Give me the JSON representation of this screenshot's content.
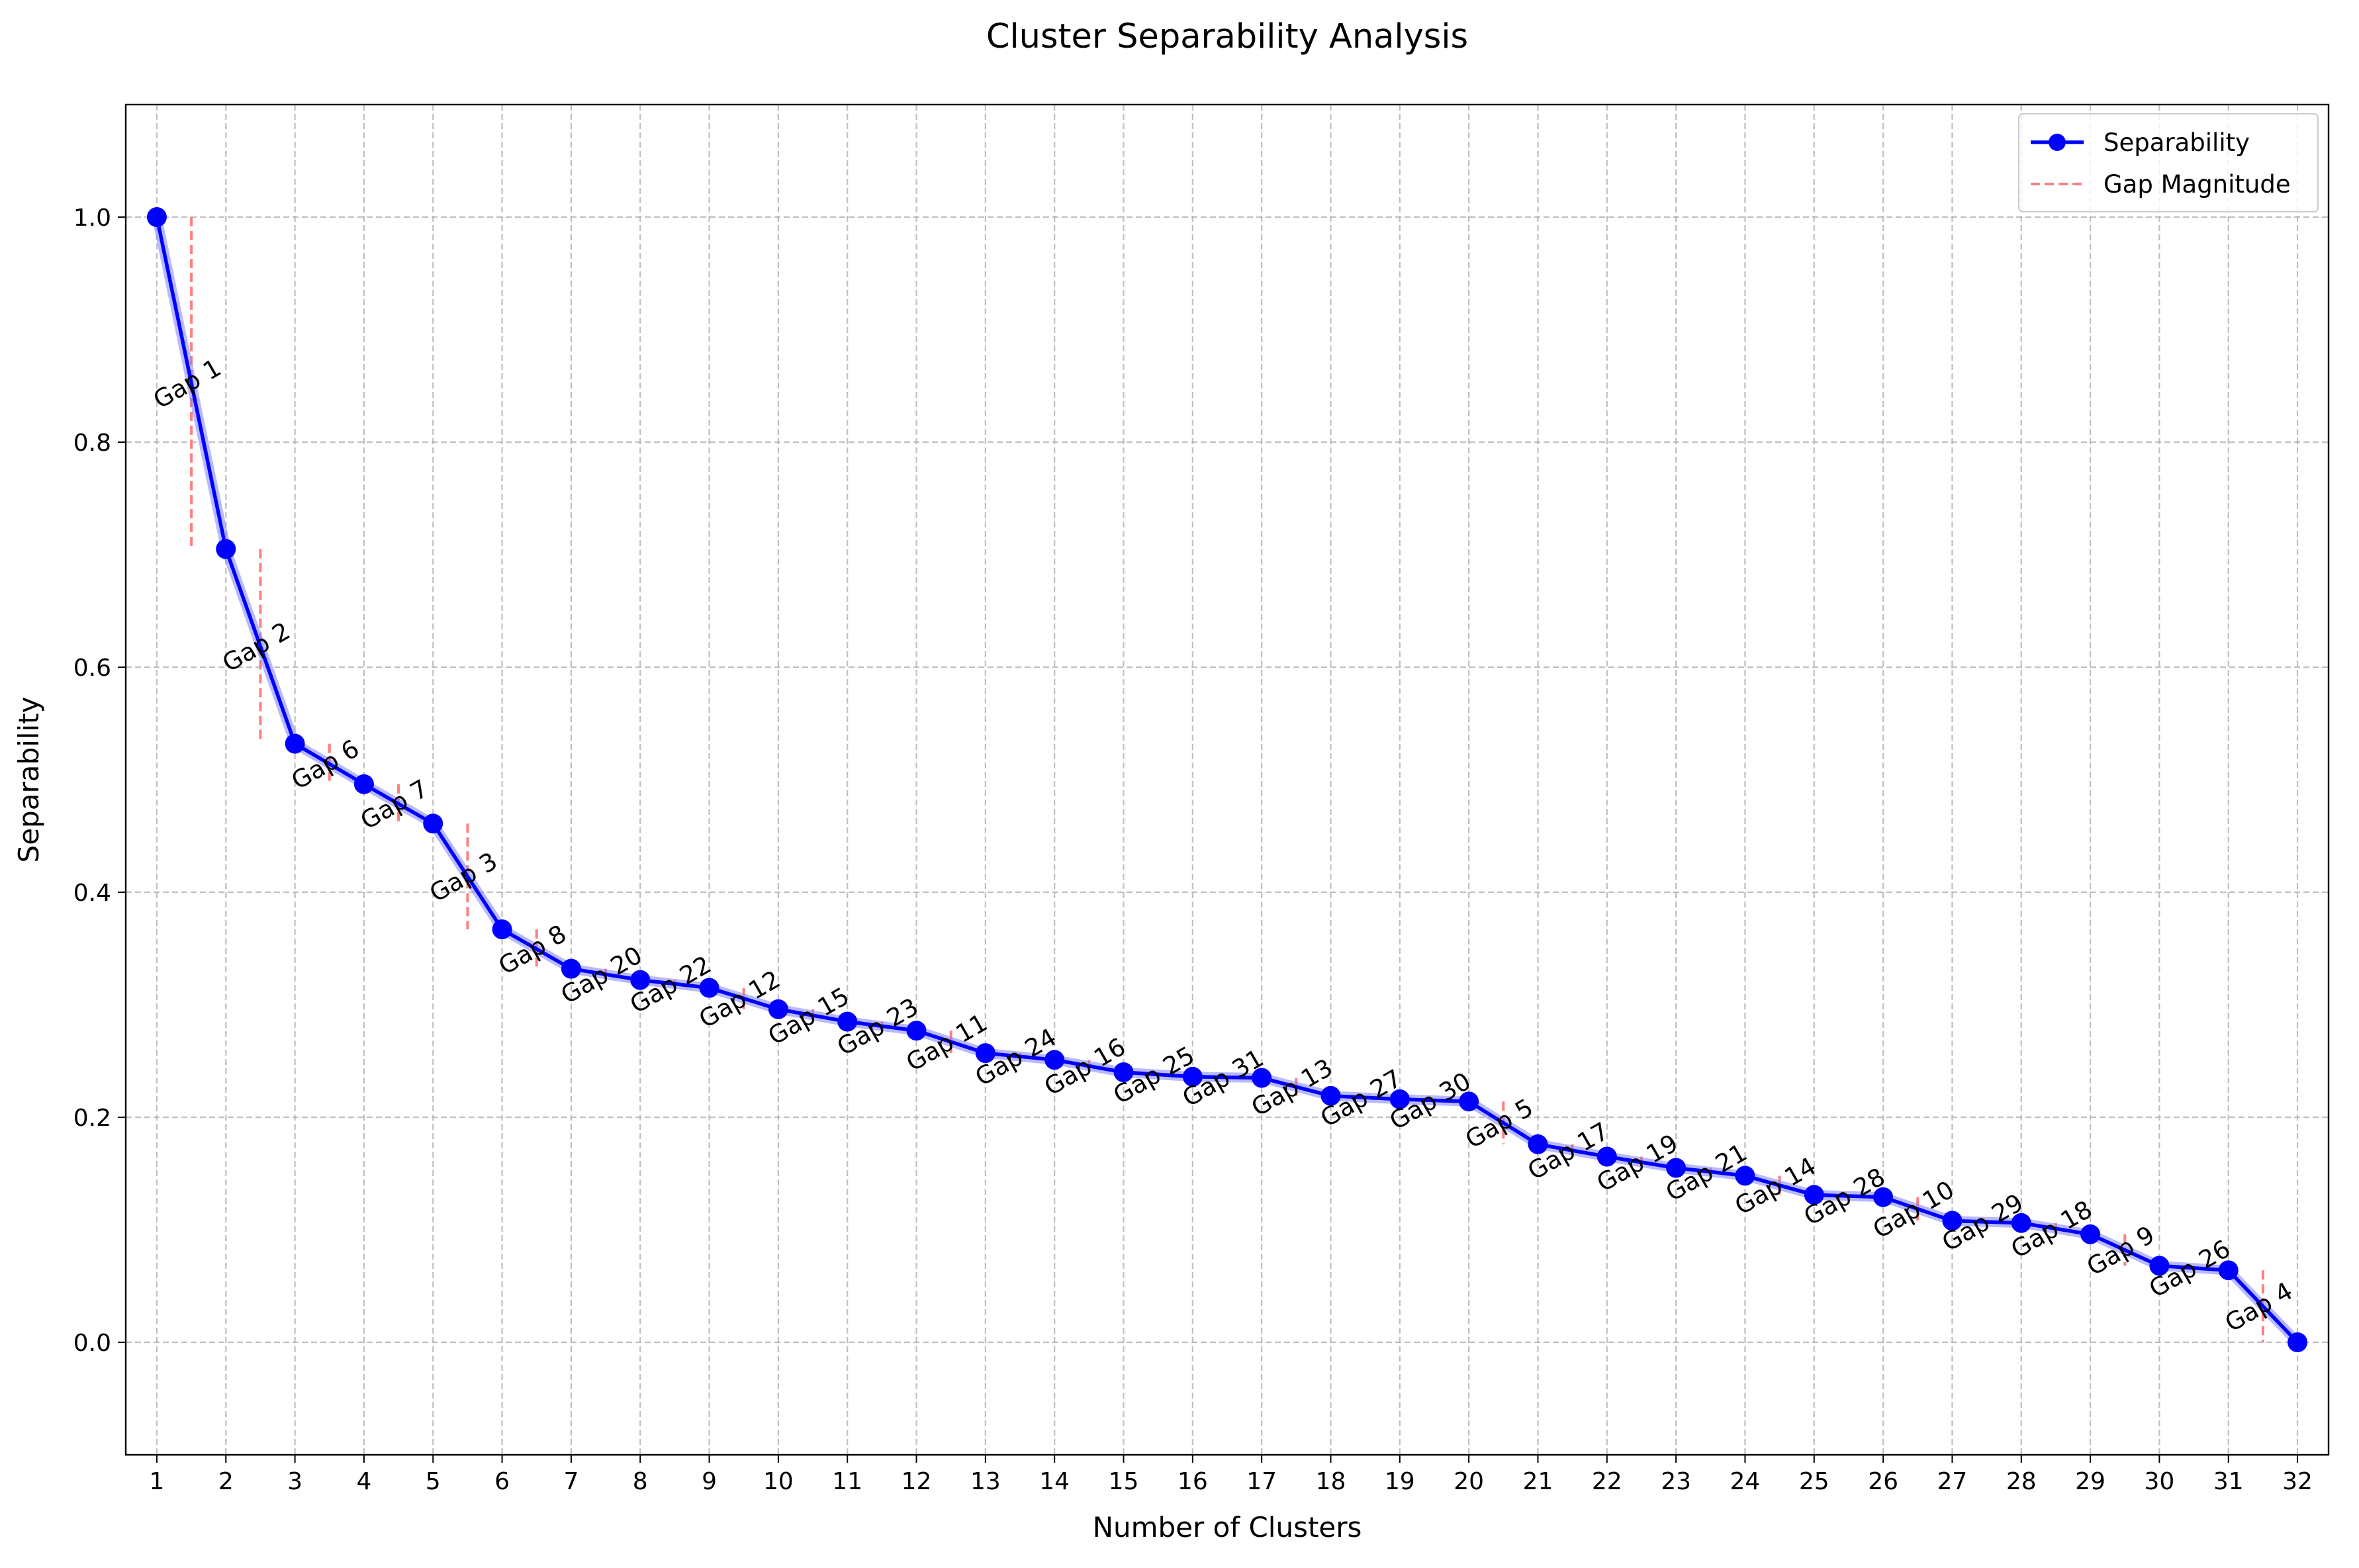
{
  "chart_data": {
    "type": "line",
    "title": "Cluster Separability Analysis",
    "xlabel": "Number of Clusters",
    "ylabel": "Separability",
    "xlim": [
      0.55,
      32.45
    ],
    "ylim": [
      -0.1,
      1.1
    ],
    "x_ticks": [
      1,
      2,
      3,
      4,
      5,
      6,
      7,
      8,
      9,
      10,
      11,
      12,
      13,
      14,
      15,
      16,
      17,
      18,
      19,
      20,
      21,
      22,
      23,
      24,
      25,
      26,
      27,
      28,
      29,
      30,
      31,
      32
    ],
    "y_ticks": [
      0.0,
      0.2,
      0.4,
      0.6,
      0.8,
      1.0
    ],
    "y_tick_labels": [
      "0.0",
      "0.2",
      "0.4",
      "0.6",
      "0.8",
      "1.0"
    ],
    "grid": true,
    "legend_position": "top-right",
    "series": [
      {
        "name": "Separability",
        "color": "#0000ff",
        "marker": "circle",
        "x": [
          1,
          2,
          3,
          4,
          5,
          6,
          7,
          8,
          9,
          10,
          11,
          12,
          13,
          14,
          15,
          16,
          17,
          18,
          19,
          20,
          21,
          22,
          23,
          24,
          25,
          26,
          27,
          28,
          29,
          30,
          31,
          32
        ],
        "values": [
          1.0,
          0.705,
          0.532,
          0.496,
          0.461,
          0.367,
          0.332,
          0.322,
          0.315,
          0.296,
          0.285,
          0.277,
          0.257,
          0.251,
          0.24,
          0.236,
          0.235,
          0.219,
          0.216,
          0.214,
          0.176,
          0.165,
          0.155,
          0.148,
          0.131,
          0.129,
          0.108,
          0.106,
          0.096,
          0.068,
          0.064,
          0.0
        ]
      }
    ],
    "gap_series": {
      "name": "Gap Magnitude",
      "color": "#ff7f7f",
      "style": "dashed"
    },
    "gap_labels": [
      "Gap 1",
      "Gap 2",
      "Gap 6",
      "Gap 7",
      "Gap 3",
      "Gap 8",
      "Gap 20",
      "Gap 22",
      "Gap 12",
      "Gap 15",
      "Gap 23",
      "Gap 11",
      "Gap 24",
      "Gap 16",
      "Gap 25",
      "Gap 31",
      "Gap 13",
      "Gap 27",
      "Gap 30",
      "Gap 5",
      "Gap 17",
      "Gap 19",
      "Gap 21",
      "Gap 14",
      "Gap 28",
      "Gap 10",
      "Gap 29",
      "Gap 18",
      "Gap 9",
      "Gap 26",
      "Gap 4"
    ],
    "legend": [
      "Separability",
      "Gap Magnitude"
    ]
  }
}
